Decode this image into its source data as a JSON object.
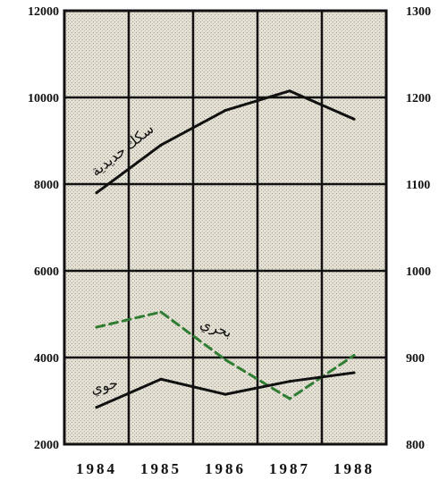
{
  "chart_data": {
    "type": "line",
    "title": "",
    "xlabel": "",
    "ylabel": "",
    "categories": [
      "1984",
      "1985",
      "1986",
      "1987",
      "1988"
    ],
    "y_left": {
      "range": [
        2000,
        12000
      ],
      "ticks": [
        "2000",
        "4000",
        "6000",
        "8000",
        "10000",
        "12000"
      ]
    },
    "y_right": {
      "range": [
        800,
        1300
      ],
      "ticks": [
        "800",
        "900",
        "1000",
        "1100",
        "1200",
        "1300"
      ]
    },
    "grid": true,
    "series": [
      {
        "name": "سكك حديدية",
        "axis": "left",
        "style": "solid",
        "color": "#111111",
        "points": [
          [
            1984,
            7800
          ],
          [
            1985,
            8900
          ],
          [
            1986,
            9700
          ],
          [
            1987,
            10150
          ],
          [
            1988,
            9500
          ]
        ]
      },
      {
        "name": "بحري",
        "axis": "left",
        "style": "dashed",
        "color": "#2e7d32",
        "points": [
          [
            1984,
            4700
          ],
          [
            1985,
            5050
          ],
          [
            1986,
            3950
          ],
          [
            1987,
            3050
          ],
          [
            1988,
            4050
          ]
        ]
      },
      {
        "name": "جوي",
        "axis": "left",
        "style": "solid",
        "color": "#111111",
        "points": [
          [
            1984,
            2850
          ],
          [
            1985,
            3500
          ],
          [
            1986,
            3150
          ],
          [
            1987,
            3450
          ],
          [
            1988,
            3650
          ]
        ]
      }
    ]
  }
}
